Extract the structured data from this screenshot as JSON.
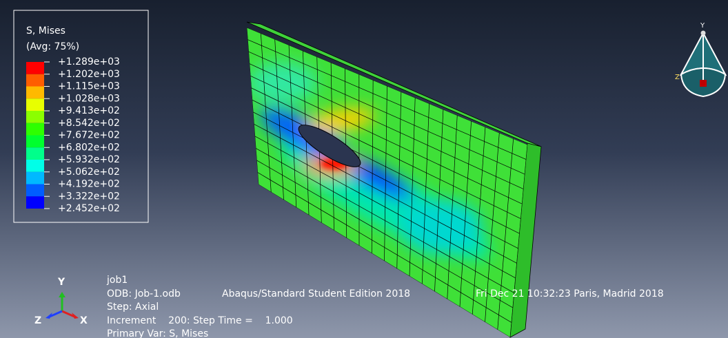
{
  "legend": {
    "title": "S, Mises",
    "subtitle": "(Avg: 75%)",
    "labels": [
      "+1.289e+03",
      "+1.202e+03",
      "+1.115e+03",
      "+1.028e+03",
      "+9.413e+02",
      "+8.542e+02",
      "+7.672e+02",
      "+6.802e+02",
      "+5.932e+02",
      "+5.062e+02",
      "+4.192e+02",
      "+3.322e+02",
      "+2.452e+02"
    ]
  },
  "triad": {
    "y": "Y",
    "z": "Z",
    "x": "X"
  },
  "view_cube": {
    "y": "Y",
    "z": "Z"
  },
  "info": {
    "job": "job1",
    "odb": "ODB: Job-1.odb",
    "edition": "Abaqus/Standard Student Edition 2018",
    "date": "Fri Dec 21 10:32:23 Paris, Madrid 2018",
    "step": "Step: Axial",
    "increment": "Increment    200: Step Time =    1.000",
    "primary_var": "Primary Var: S, Mises"
  }
}
